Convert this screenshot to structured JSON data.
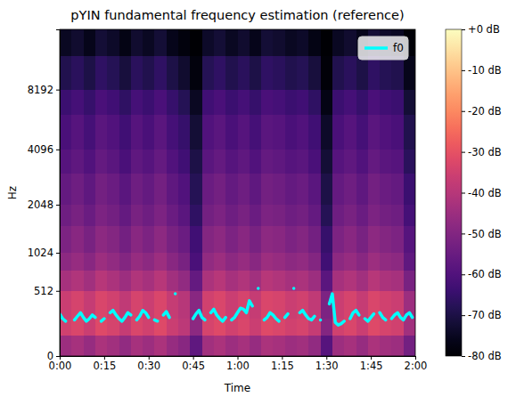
{
  "chart_data": {
    "type": "spectrogram",
    "title": "pYIN fundamental frequency estimation (reference)",
    "x_label": "Time",
    "y_label": "Hz",
    "xlim": [
      0,
      120
    ],
    "ylim": [
      0,
      16000
    ],
    "log": "y",
    "xticks": [
      {
        "value": 0,
        "label": "0:00"
      },
      {
        "value": 15,
        "label": "0:15"
      },
      {
        "value": 30,
        "label": "0:30"
      },
      {
        "value": 45,
        "label": "0:45"
      },
      {
        "value": 60,
        "label": "1:00"
      },
      {
        "value": 75,
        "label": "1:15"
      },
      {
        "value": 90,
        "label": "1:30"
      },
      {
        "value": 105,
        "label": "1:45"
      },
      {
        "value": 120,
        "label": "2:00"
      }
    ],
    "yticks": [
      0,
      512,
      1024,
      2048,
      4096,
      8192
    ],
    "heatmap": {
      "x_edges": [
        0,
        4,
        8,
        12,
        16,
        20,
        24,
        28,
        32,
        36,
        40,
        44,
        48,
        52,
        56,
        60,
        64,
        68,
        72,
        76,
        80,
        84,
        88,
        92,
        96,
        100,
        104,
        108,
        112,
        116,
        120
      ],
      "y_edges": [
        0,
        128,
        256,
        512,
        768,
        1024,
        1536,
        2048,
        3072,
        4096,
        6144,
        8192,
        12000,
        16000
      ],
      "values": [
        [
          -45,
          -43,
          -46,
          -42,
          -44,
          -47,
          -43,
          -45,
          -42,
          -46,
          -49,
          -57,
          -44,
          -42,
          -45,
          -43,
          -46,
          -42,
          -43,
          -45,
          -44,
          -47,
          -59,
          -45,
          -43,
          -46,
          -42,
          -44,
          -45,
          -53
        ],
        [
          -35,
          -33,
          -36,
          -32,
          -34,
          -37,
          -33,
          -35,
          -32,
          -36,
          -39,
          -48,
          -34,
          -32,
          -35,
          -33,
          -36,
          -32,
          -33,
          -35,
          -34,
          -37,
          -50,
          -35,
          -33,
          -36,
          -32,
          -34,
          -35,
          -44
        ],
        [
          -36,
          -34,
          -37,
          -33,
          -35,
          -38,
          -34,
          -36,
          -33,
          -37,
          -40,
          -49,
          -35,
          -33,
          -36,
          -34,
          -37,
          -33,
          -34,
          -36,
          -35,
          -38,
          -51,
          -36,
          -34,
          -37,
          -33,
          -35,
          -36,
          -45
        ],
        [
          -43,
          -41,
          -44,
          -40,
          -42,
          -45,
          -41,
          -43,
          -40,
          -44,
          -47,
          -56,
          -42,
          -40,
          -43,
          -41,
          -44,
          -40,
          -41,
          -43,
          -42,
          -45,
          -58,
          -43,
          -41,
          -44,
          -40,
          -42,
          -43,
          -52
        ],
        [
          -48,
          -46,
          -49,
          -45,
          -47,
          -50,
          -46,
          -48,
          -45,
          -49,
          -52,
          -61,
          -47,
          -45,
          -48,
          -46,
          -49,
          -45,
          -46,
          -48,
          -47,
          -50,
          -63,
          -48,
          -46,
          -49,
          -45,
          -47,
          -48,
          -57
        ],
        [
          -51,
          -49,
          -52,
          -48,
          -50,
          -53,
          -49,
          -51,
          -48,
          -52,
          -55,
          -63,
          -50,
          -48,
          -51,
          -49,
          -52,
          -48,
          -49,
          -51,
          -50,
          -53,
          -65,
          -51,
          -49,
          -52,
          -48,
          -50,
          -51,
          -59
        ],
        [
          -54,
          -52,
          -55,
          -51,
          -53,
          -56,
          -52,
          -54,
          -51,
          -55,
          -58,
          -66,
          -53,
          -51,
          -54,
          -52,
          -55,
          -51,
          -52,
          -54,
          -53,
          -56,
          -68,
          -54,
          -52,
          -55,
          -51,
          -53,
          -54,
          -62
        ],
        [
          -56,
          -54,
          -57,
          -53,
          -55,
          -58,
          -54,
          -56,
          -53,
          -57,
          -60,
          -68,
          -55,
          -53,
          -56,
          -54,
          -57,
          -53,
          -54,
          -56,
          -55,
          -58,
          -70,
          -56,
          -54,
          -57,
          -53,
          -55,
          -56,
          -64
        ],
        [
          -59,
          -57,
          -60,
          -56,
          -58,
          -61,
          -57,
          -59,
          -56,
          -60,
          -63,
          -70,
          -58,
          -56,
          -59,
          -57,
          -60,
          -56,
          -57,
          -59,
          -58,
          -61,
          -72,
          -59,
          -57,
          -60,
          -56,
          -58,
          -59,
          -67
        ],
        [
          -61,
          -59,
          -62,
          -58,
          -60,
          -63,
          -59,
          -61,
          -58,
          -62,
          -65,
          -72,
          -60,
          -58,
          -61,
          -59,
          -62,
          -58,
          -59,
          -61,
          -60,
          -63,
          -74,
          -61,
          -59,
          -62,
          -58,
          -60,
          -61,
          -69
        ],
        [
          -64,
          -62,
          -65,
          -61,
          -63,
          -66,
          -62,
          -64,
          -61,
          -65,
          -68,
          -75,
          -63,
          -61,
          -64,
          -62,
          -65,
          -61,
          -62,
          -64,
          -63,
          -66,
          -77,
          -64,
          -62,
          -65,
          -61,
          -63,
          -64,
          -72
        ],
        [
          -69,
          -67,
          -70,
          -66,
          -68,
          -71,
          -67,
          -69,
          -66,
          -70,
          -73,
          -78,
          -68,
          -66,
          -69,
          -67,
          -70,
          -66,
          -67,
          -69,
          -68,
          -71,
          -79,
          -69,
          -67,
          -70,
          -66,
          -68,
          -69,
          -76
        ],
        [
          -75,
          -73,
          -76,
          -72,
          -74,
          -77,
          -73,
          -75,
          -72,
          -76,
          -78,
          -80,
          -74,
          -72,
          -75,
          -73,
          -76,
          -72,
          -73,
          -75,
          -74,
          -77,
          -80,
          -75,
          -73,
          -76,
          -72,
          -74,
          -75,
          -79
        ]
      ]
    },
    "zlim": [
      -80,
      0
    ],
    "zticks": [
      {
        "value": 0,
        "label": "+0 dB"
      },
      {
        "value": -10,
        "label": "-10 dB"
      },
      {
        "value": -20,
        "label": "-20 dB"
      },
      {
        "value": -30,
        "label": "-30 dB"
      },
      {
        "value": -40,
        "label": "-40 dB"
      },
      {
        "value": -50,
        "label": "-50 dB"
      },
      {
        "value": -60,
        "label": "-60 dB"
      },
      {
        "value": -70,
        "label": "-70 dB"
      },
      {
        "value": -80,
        "label": "-80 dB"
      }
    ],
    "series": [
      {
        "name": "f0",
        "color": "#00ffff",
        "type": "line",
        "x": [
          0,
          1,
          2,
          3,
          4,
          5,
          6,
          7,
          8,
          9,
          10,
          11,
          12,
          13,
          14,
          15,
          16,
          17,
          18,
          19,
          20,
          21,
          22,
          23,
          24,
          25,
          26,
          27,
          28,
          29,
          30,
          31,
          32,
          33,
          34,
          35,
          36,
          37,
          38,
          39,
          40,
          41,
          42,
          43,
          44,
          45,
          46,
          47,
          48,
          49,
          50,
          51,
          52,
          53,
          54,
          55,
          56,
          57,
          58,
          59,
          60,
          61,
          62,
          63,
          64,
          65,
          66,
          67,
          68,
          69,
          70,
          71,
          72,
          73,
          74,
          75,
          76,
          77,
          78,
          79,
          80,
          81,
          82,
          83,
          84,
          85,
          86,
          87,
          88,
          89,
          90,
          91,
          92,
          93,
          94,
          95,
          96,
          97,
          98,
          99,
          100,
          101,
          102,
          103,
          104,
          105,
          106,
          107,
          108,
          109,
          110,
          111,
          112,
          113,
          114,
          115,
          116,
          117,
          118,
          119,
          120
        ],
        "values": [
          290,
          250,
          230,
          null,
          null,
          240,
          270,
          300,
          260,
          230,
          250,
          280,
          260,
          null,
          230,
          250,
          null,
          300,
          320,
          280,
          250,
          230,
          260,
          300,
          280,
          null,
          240,
          270,
          320,
          300,
          260,
          null,
          240,
          230,
          null,
          280,
          310,
          260,
          null,
          480,
          null,
          null,
          null,
          null,
          null,
          250,
          290,
          320,
          260,
          240,
          null,
          300,
          330,
          280,
          250,
          230,
          260,
          null,
          240,
          260,
          300,
          340,
          330,
          300,
          410,
          360,
          null,
          540,
          null,
          240,
          260,
          300,
          280,
          250,
          230,
          null,
          260,
          290,
          null,
          540,
          null,
          300,
          320,
          280,
          250,
          240,
          270,
          null,
          240,
          null,
          null,
          380,
          480,
          220,
          200,
          210,
          230,
          null,
          250,
          300,
          320,
          280,
          null,
          250,
          230,
          260,
          290,
          null,
          300,
          260,
          240,
          null,
          250,
          280,
          300,
          260,
          240,
          280,
          300,
          260,
          null
        ]
      }
    ],
    "legend": "upper right"
  }
}
